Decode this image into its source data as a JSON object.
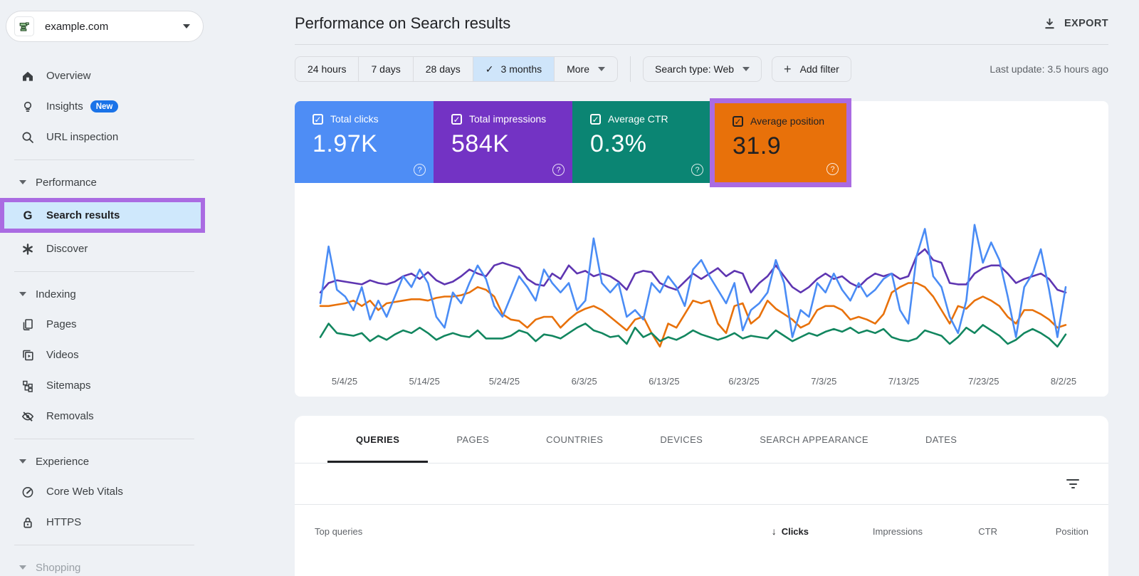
{
  "colors": {
    "page_bg": "#eef1f5",
    "selected_light_blue": "#cfe5fa",
    "sidebar_selected_bg": "#cfe8fc",
    "annotation_highlight": "#aa6be2",
    "badge_blue": "#1a73e8",
    "text_primary": "#202124",
    "text_secondary": "#5f6368"
  },
  "sidebar": {
    "property_selector": {
      "label": "example.com",
      "icon": "site-property-icon"
    },
    "sections": [
      {
        "items": [
          {
            "label": "Overview",
            "icon": "home-icon"
          },
          {
            "label": "Insights",
            "icon": "lightbulb-icon",
            "badge": "New"
          },
          {
            "label": "URL inspection",
            "icon": "search-icon"
          }
        ]
      },
      {
        "header": "Performance",
        "items": [
          {
            "label": "Search results",
            "icon": "google-g-icon",
            "selected": true,
            "annotated": true
          },
          {
            "label": "Discover",
            "icon": "asterisk-icon"
          }
        ]
      },
      {
        "header": "Indexing",
        "items": [
          {
            "label": "Pages",
            "icon": "pages-icon"
          },
          {
            "label": "Videos",
            "icon": "video-page-icon"
          },
          {
            "label": "Sitemaps",
            "icon": "sitemap-icon"
          },
          {
            "label": "Removals",
            "icon": "eye-off-icon"
          }
        ]
      },
      {
        "header": "Experience",
        "items": [
          {
            "label": "Core Web Vitals",
            "icon": "speedometer-icon"
          },
          {
            "label": "HTTPS",
            "icon": "lock-icon"
          }
        ]
      },
      {
        "header": "Shopping",
        "items": []
      }
    ]
  },
  "header": {
    "title": "Performance on Search results",
    "export_label": "EXPORT",
    "export_icon": "download-icon"
  },
  "toolbar": {
    "ranges": [
      "24 hours",
      "7 days",
      "28 days",
      "3 months"
    ],
    "selected_range": "3 months",
    "check_glyph": "✓",
    "more_label": "More",
    "search_type_label": "Search type: Web",
    "add_filter_label": "Add filter",
    "add_filter_plus": "+",
    "last_update": "Last update: 3.5 hours ago"
  },
  "metric_cards": [
    {
      "label": "Total clicks",
      "value": "1.97K",
      "color": "#4e8df5",
      "checked": true,
      "check_glyph": "✓",
      "help_glyph": "?"
    },
    {
      "label": "Total impressions",
      "value": "584K",
      "color": "#7333c4",
      "checked": true,
      "check_glyph": "✓",
      "help_glyph": "?"
    },
    {
      "label": "Average CTR",
      "value": "0.3%",
      "color": "#0b8573",
      "checked": true,
      "check_glyph": "✓",
      "help_glyph": "?"
    },
    {
      "label": "Average position",
      "value": "31.9",
      "color": "#e8710a",
      "checked": true,
      "annotated": true,
      "dark_text": true,
      "check_glyph": "✓",
      "help_glyph": "?"
    }
  ],
  "tabs": {
    "items": [
      "QUERIES",
      "PAGES",
      "COUNTRIES",
      "DEVICES",
      "SEARCH APPEARANCE",
      "DATES"
    ],
    "active": "QUERIES"
  },
  "table": {
    "row_header": "Top queries",
    "columns": [
      "Clicks",
      "Impressions",
      "CTR",
      "Position"
    ],
    "sorted_column": "Clicks",
    "sort_arrow": "↓",
    "filter_icon": "filter-list-icon"
  },
  "chart_data": {
    "type": "line",
    "title": "Performance over time (daily, 3 months)",
    "x_tick_labels": [
      "5/4/25",
      "5/14/25",
      "5/24/25",
      "6/3/25",
      "6/13/25",
      "6/23/25",
      "7/3/25",
      "7/13/25",
      "7/23/25",
      "8/2/25"
    ],
    "y_axis": "hidden in this view; values normalized 0-100 (percent of plot height)",
    "grid": false,
    "legend": "metric cards above act as legend toggles",
    "series": [
      {
        "name": "Clicks",
        "color": "#4a8cf5",
        "values": [
          40,
          82,
          50,
          45,
          35,
          52,
          28,
          42,
          30,
          45,
          60,
          52,
          65,
          55,
          30,
          22,
          48,
          40,
          55,
          68,
          58,
          38,
          30,
          45,
          60,
          52,
          42,
          65,
          55,
          48,
          55,
          35,
          42,
          88,
          55,
          48,
          55,
          30,
          35,
          28,
          55,
          48,
          60,
          52,
          38,
          65,
          72,
          60,
          50,
          40,
          55,
          20,
          35,
          40,
          48,
          72,
          55,
          15,
          35,
          30,
          55,
          48,
          62,
          50,
          42,
          55,
          45,
          50,
          58,
          62,
          35,
          25,
          75,
          95,
          60,
          52,
          30,
          18,
          42,
          98,
          70,
          85,
          72,
          45,
          15,
          52,
          62,
          80,
          50,
          15,
          52
        ]
      },
      {
        "name": "Impressions",
        "color": "#5e35b1",
        "values": [
          48,
          55,
          57,
          56,
          55,
          54,
          57,
          55,
          54,
          56,
          60,
          62,
          58,
          63,
          57,
          54,
          56,
          60,
          65,
          62,
          60,
          68,
          70,
          68,
          66,
          58,
          54,
          53,
          62,
          58,
          68,
          62,
          64,
          60,
          62,
          60,
          56,
          50,
          62,
          64,
          63,
          55,
          52,
          50,
          56,
          62,
          58,
          62,
          66,
          60,
          64,
          62,
          48,
          55,
          60,
          68,
          60,
          52,
          48,
          52,
          58,
          62,
          58,
          60,
          55,
          52,
          58,
          62,
          60,
          62,
          58,
          60,
          75,
          80,
          72,
          70,
          55,
          54,
          54,
          62,
          66,
          68,
          68,
          62,
          55,
          58,
          60,
          62,
          58,
          50,
          48
        ]
      },
      {
        "name": "CTR",
        "color": "#12865f",
        "values": [
          15,
          25,
          18,
          17,
          16,
          18,
          12,
          16,
          13,
          17,
          20,
          18,
          22,
          18,
          13,
          16,
          18,
          16,
          15,
          20,
          14,
          14,
          14,
          16,
          20,
          18,
          12,
          17,
          16,
          14,
          18,
          22,
          25,
          20,
          18,
          15,
          16,
          10,
          22,
          15,
          18,
          12,
          15,
          13,
          16,
          20,
          17,
          15,
          13,
          15,
          18,
          14,
          16,
          15,
          14,
          20,
          16,
          12,
          15,
          18,
          16,
          19,
          21,
          19,
          22,
          18,
          20,
          18,
          21,
          15,
          13,
          12,
          14,
          20,
          18,
          16,
          10,
          15,
          22,
          18,
          24,
          20,
          16,
          10,
          13,
          18,
          21,
          18,
          14,
          8,
          17
        ]
      },
      {
        "name": "Position",
        "color": "#e8710a",
        "values": [
          38,
          38,
          39,
          40,
          42,
          38,
          42,
          35,
          40,
          41,
          42,
          43,
          43,
          42,
          44,
          45,
          45,
          46,
          48,
          52,
          50,
          45,
          32,
          28,
          27,
          22,
          28,
          30,
          30,
          22,
          28,
          33,
          36,
          38,
          35,
          30,
          25,
          20,
          28,
          30,
          18,
          8,
          25,
          22,
          32,
          42,
          40,
          42,
          25,
          18,
          38,
          40,
          25,
          30,
          42,
          36,
          32,
          28,
          22,
          25,
          35,
          38,
          38,
          35,
          28,
          30,
          28,
          25,
          32,
          48,
          52,
          55,
          55,
          52,
          45,
          35,
          25,
          38,
          36,
          42,
          45,
          42,
          38,
          30,
          25,
          35,
          35,
          32,
          28,
          22,
          24
        ]
      }
    ]
  }
}
